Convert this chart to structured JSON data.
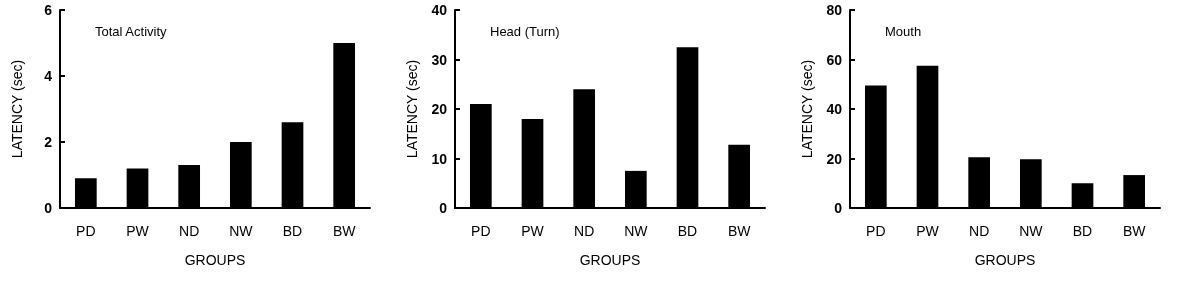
{
  "chart_data": [
    {
      "type": "bar",
      "title": "Total Activity",
      "xlabel": "GROUPS",
      "ylabel": "LATENCY (sec)",
      "categories": [
        "PD",
        "PW",
        "ND",
        "NW",
        "BD",
        "BW"
      ],
      "values": [
        0.9,
        1.2,
        1.3,
        2.0,
        2.6,
        5.0
      ],
      "color": "#000000",
      "ylim": [
        0,
        6
      ],
      "yticks": [
        0,
        2,
        4,
        6
      ],
      "grid": false
    },
    {
      "type": "bar",
      "title": "Head (Turn)",
      "xlabel": "GROUPS",
      "ylabel": "LATENCY (sec)",
      "categories": [
        "PD",
        "PW",
        "ND",
        "NW",
        "BD",
        "BW"
      ],
      "values": [
        21,
        18,
        24,
        7.5,
        32.5,
        12.8
      ],
      "color": "#000000",
      "ylim": [
        0,
        40
      ],
      "yticks": [
        0,
        10,
        20,
        30,
        40
      ],
      "grid": false
    },
    {
      "type": "bar",
      "title": "Mouth",
      "xlabel": "GROUPS",
      "ylabel": "LATENCY (sec)",
      "categories": [
        "PD",
        "PW",
        "ND",
        "NW",
        "BD",
        "BW"
      ],
      "values": [
        49.5,
        57.5,
        20.5,
        19.7,
        10,
        13.3
      ],
      "color": "#000000",
      "ylim": [
        0,
        80
      ],
      "yticks": [
        0,
        20,
        40,
        60,
        80
      ],
      "grid": false
    }
  ]
}
